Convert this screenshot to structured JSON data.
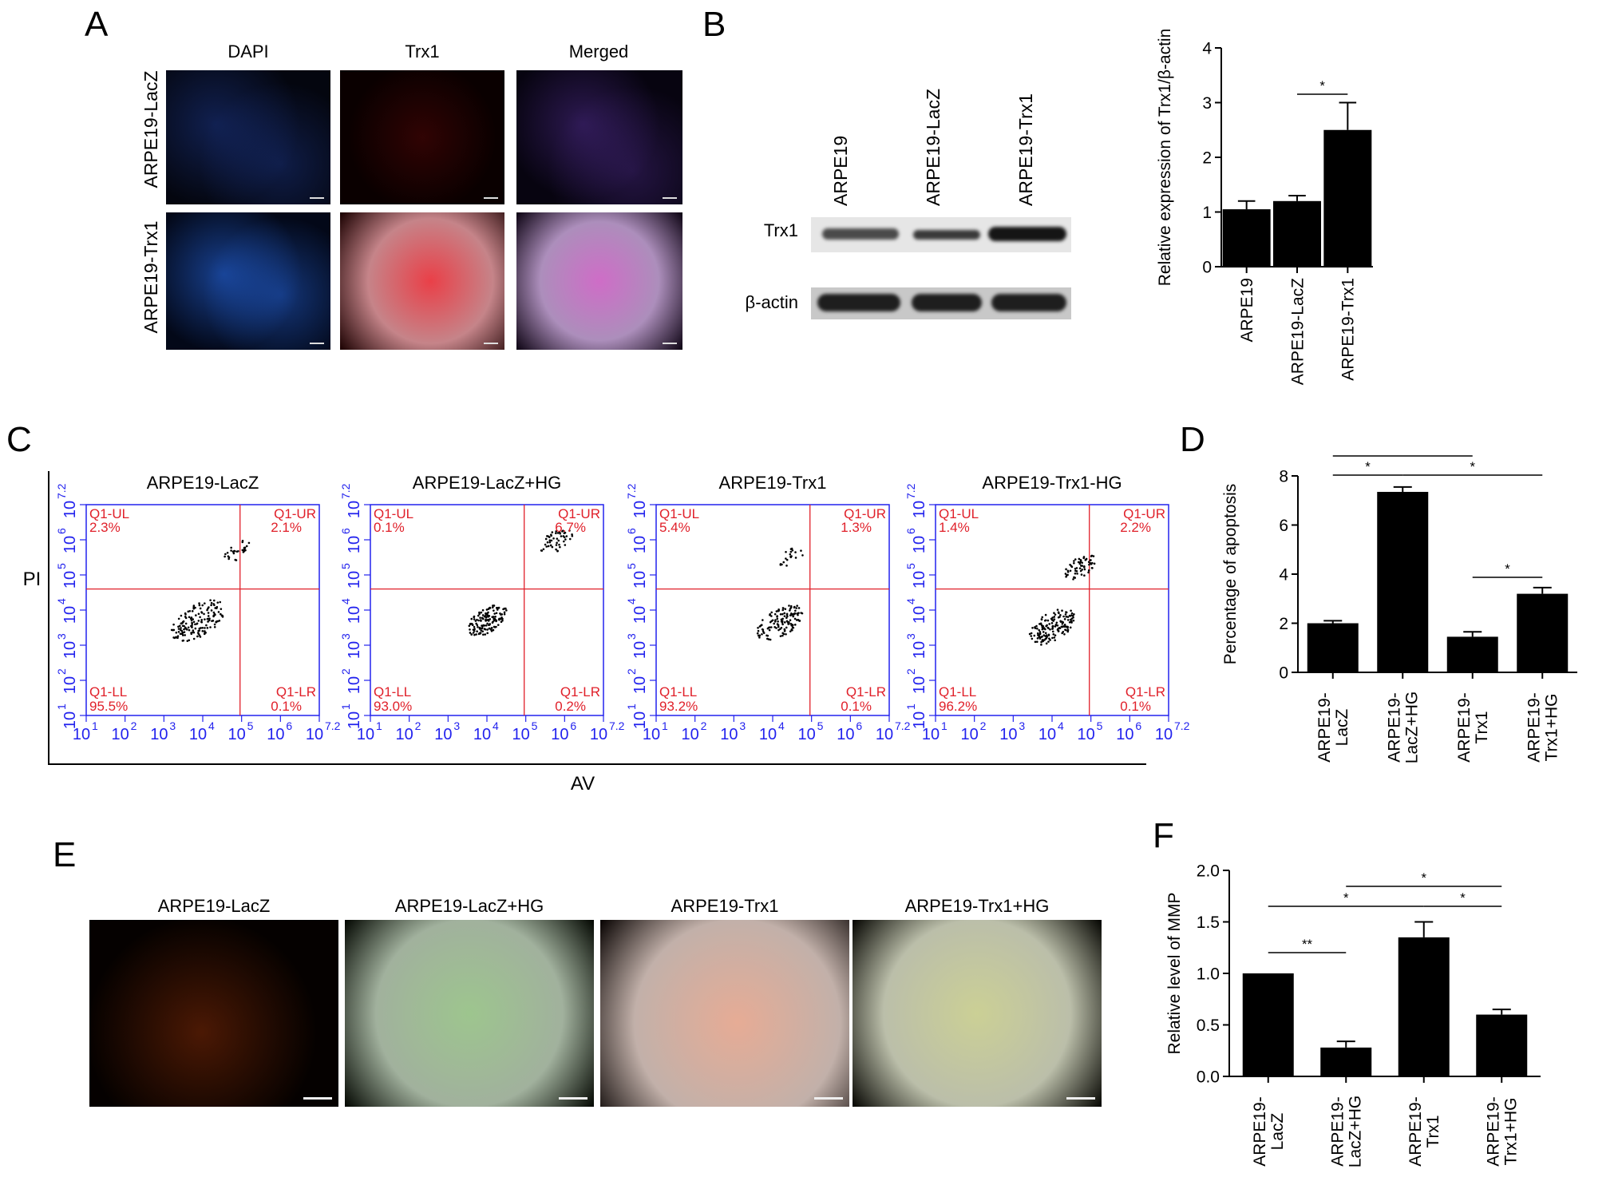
{
  "panels": {
    "a": "A",
    "b": "B",
    "c": "C",
    "d": "D",
    "e": "E",
    "f": "F"
  },
  "panel_a": {
    "columns": [
      "DAPI",
      "Trx1",
      "Merged"
    ],
    "rows": [
      "ARPE19-LacZ",
      "ARPE19-Trx1"
    ]
  },
  "panel_b_blot": {
    "lanes": [
      "ARPE19",
      "ARPE19-LacZ",
      "ARPE19-Trx1"
    ],
    "bands": [
      "Trx1",
      "β-actin"
    ]
  },
  "panel_c": {
    "y_label": "PI",
    "x_label": "AV",
    "plots": [
      {
        "title": "ARPE19-LacZ",
        "ul_label": "Q1-UL",
        "ul": "2.3%",
        "ur_label": "Q1-UR",
        "ur": "2.1%",
        "ll_label": "Q1-LL",
        "ll": "95.5%",
        "lr_label": "Q1-LR",
        "lr": "0.1%"
      },
      {
        "title": "ARPE19-LacZ+HG",
        "ul_label": "Q1-UL",
        "ul": "0.1%",
        "ur_label": "Q1-UR",
        "ur": "6.7%",
        "ll_label": "Q1-LL",
        "ll": "93.0%",
        "lr_label": "Q1-LR",
        "lr": "0.2%"
      },
      {
        "title": "ARPE19-Trx1",
        "ul_label": "Q1-UL",
        "ul": "5.4%",
        "ur_label": "Q1-UR",
        "ur": "1.3%",
        "ll_label": "Q1-LL",
        "ll": "93.2%",
        "lr_label": "Q1-LR",
        "lr": "0.1%"
      },
      {
        "title": "ARPE19-Trx1-HG",
        "ul_label": "Q1-UL",
        "ul": "1.4%",
        "ur_label": "Q1-UR",
        "ur": "2.2%",
        "ll_label": "Q1-LL",
        "ll": "96.2%",
        "lr_label": "Q1-LR",
        "lr": "0.1%"
      }
    ],
    "tick_bases": [
      "10",
      "10",
      "10",
      "10",
      "10",
      "10",
      "10"
    ],
    "tick_exps": [
      "1",
      "2",
      "3",
      "4",
      "5",
      "6",
      "7.2"
    ]
  },
  "panel_e": {
    "titles": [
      "ARPE19-LacZ",
      "ARPE19-LacZ+HG",
      "ARPE19-Trx1",
      "ARPE19-Trx1+HG"
    ]
  },
  "colors": {
    "bar": "#000000",
    "gate": "#e0202a",
    "flow_axis": "#2222ee"
  },
  "chart_data": [
    {
      "id": "B",
      "type": "bar",
      "ylabel": "Relative expression of Trx1/β-actin",
      "ylim": [
        0,
        4
      ],
      "yticks": [
        "0",
        "1",
        "2",
        "3",
        "4"
      ],
      "categories": [
        [
          "ARPE19"
        ],
        [
          "ARPE19-LacZ"
        ],
        [
          "ARPE19-Trx1"
        ]
      ],
      "values": [
        1.05,
        1.2,
        2.5
      ],
      "errors": [
        0.15,
        0.1,
        0.5
      ],
      "significance": [
        {
          "from": 1,
          "to": 2,
          "label": "*"
        }
      ]
    },
    {
      "id": "D",
      "type": "bar",
      "ylabel": "Percentage of apoptosis",
      "ylim": [
        0,
        8
      ],
      "yticks": [
        "0",
        "2",
        "4",
        "6",
        "8"
      ],
      "categories": [
        [
          "ARPE19-",
          "LacZ"
        ],
        [
          "ARPE19-",
          "LacZ+HG"
        ],
        [
          "ARPE19-",
          "Trx1"
        ],
        [
          "ARPE19-",
          "Trx1+HG"
        ]
      ],
      "values": [
        2.0,
        7.35,
        1.45,
        3.2
      ],
      "errors": [
        0.1,
        0.2,
        0.2,
        0.25
      ],
      "significance": [
        {
          "from": 0,
          "to": 2,
          "label": "*"
        },
        {
          "from": 0,
          "to": 1,
          "label": "*"
        },
        {
          "from": 1,
          "to": 3,
          "label": "*"
        },
        {
          "from": 2,
          "to": 3,
          "label": "*"
        }
      ]
    },
    {
      "id": "F",
      "type": "bar",
      "ylabel": "Relative level of MMP",
      "ylim": [
        0,
        2
      ],
      "yticks": [
        "0.0",
        "0.5",
        "1.0",
        "1.5",
        "2.0"
      ],
      "categories": [
        [
          "ARPE19-",
          "LacZ"
        ],
        [
          "ARPE19-",
          "LacZ+HG"
        ],
        [
          "ARPE19-",
          "Trx1"
        ],
        [
          "ARPE19-",
          "Trx1+HG"
        ]
      ],
      "values": [
        1.0,
        0.28,
        1.35,
        0.6
      ],
      "errors": [
        0.0,
        0.06,
        0.15,
        0.05
      ],
      "significance": [
        {
          "from": 1,
          "to": 3,
          "label": "*"
        },
        {
          "from": 0,
          "to": 2,
          "label": "*"
        },
        {
          "from": 2,
          "to": 3,
          "label": "*"
        },
        {
          "from": 0,
          "to": 1,
          "label": "**"
        }
      ]
    }
  ]
}
